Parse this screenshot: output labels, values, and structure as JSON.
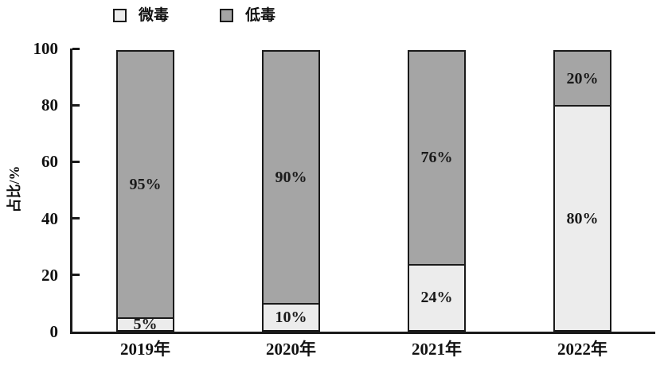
{
  "chart_data": {
    "type": "bar",
    "stacked": true,
    "title": "",
    "categories": [
      "2019年",
      "2020年",
      "2021年",
      "2022年"
    ],
    "series": [
      {
        "name": "微毒",
        "color": "#ececec",
        "values": [
          5,
          10,
          24,
          80
        ],
        "labels": [
          "5%",
          "10%",
          "24%",
          "80%"
        ]
      },
      {
        "name": "低毒",
        "color": "#a5a5a5",
        "values": [
          95,
          90,
          76,
          20
        ],
        "labels": [
          "95%",
          "90%",
          "76%",
          "20%"
        ]
      }
    ],
    "xlabel": "",
    "ylabel": "占比/%",
    "ylim": [
      0,
      100
    ],
    "yticks": [
      0,
      20,
      40,
      60,
      80,
      100
    ],
    "legend_position": "top",
    "grid": false,
    "axis_color": "#1a1a1a",
    "bar_border_color": "#1a1a1a"
  }
}
